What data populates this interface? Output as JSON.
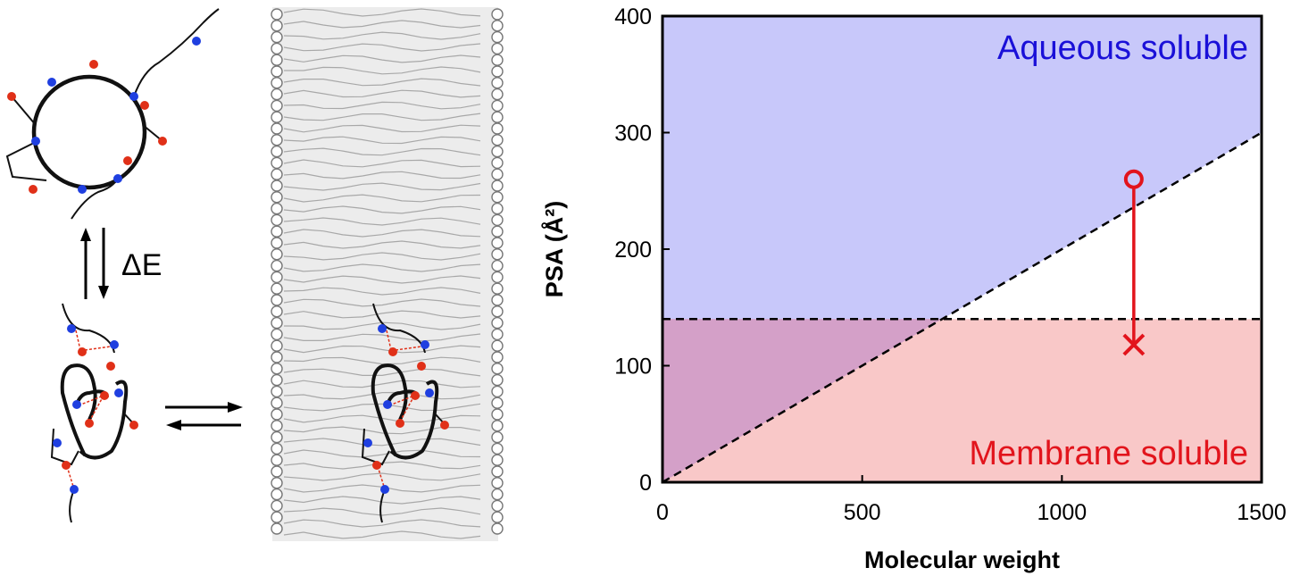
{
  "figure": {
    "equilibrium_label": "ΔE",
    "colors": {
      "hbond_donor": "#1f3fe0",
      "hbond_acceptor": "#e03018",
      "backbone": "#111111",
      "membrane_fill": "#ececec",
      "lipid_tail": "#a8a8a8"
    }
  },
  "chart_data": {
    "type": "area",
    "title": "",
    "xlabel": "Molecular weight",
    "ylabel": "PSA (Å²)",
    "xlim": [
      0,
      1500
    ],
    "ylim": [
      0,
      400
    ],
    "xticks": [
      0,
      500,
      1000,
      1500
    ],
    "yticks": [
      0,
      100,
      200,
      300,
      400
    ],
    "grid": false,
    "regions": [
      {
        "name": "Aqueous soluble",
        "label": "Aqueous soluble",
        "color": "#c8c8fa",
        "boundary": [
          [
            0,
            0
          ],
          [
            1500,
            300
          ]
        ],
        "side": "above"
      },
      {
        "name": "Membrane soluble",
        "label": "Membrane soluble",
        "color": "#f9c8c8",
        "boundary_y": 140,
        "side": "below"
      }
    ],
    "overlap_color": "#d4a0c8",
    "label_colors": {
      "Aqueous soluble": "#1a10d8",
      "Membrane soluble": "#e2141c"
    },
    "dashed_lines": [
      {
        "x": [
          0,
          1500
        ],
        "y": [
          0,
          300
        ]
      },
      {
        "x": [
          0,
          1500
        ],
        "y": [
          140,
          140
        ]
      }
    ],
    "transition": {
      "x": 1180,
      "y_start": 260,
      "y_end": 118,
      "start_marker": "open-circle",
      "end_marker": "cross",
      "color": "#e2141c"
    }
  }
}
